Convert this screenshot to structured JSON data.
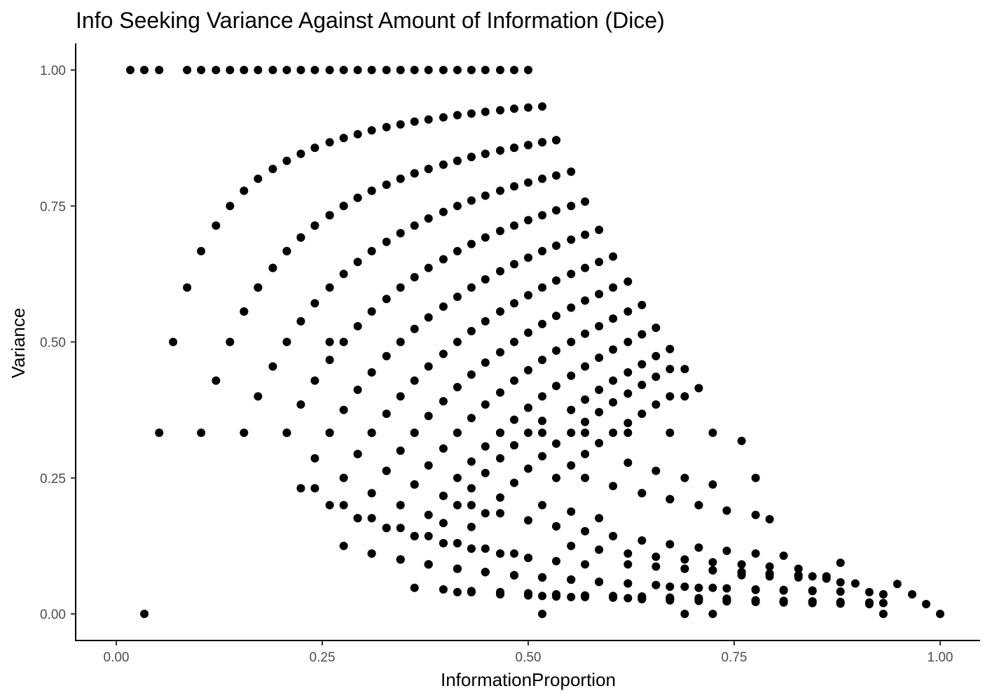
{
  "chart_data": {
    "type": "scatter",
    "title": "Info Seeking Variance Against Amount of Information (Dice)",
    "xlabel": "InformationProportion",
    "ylabel": "Variance",
    "xlim": [
      -0.04,
      1.05
    ],
    "ylim": [
      -0.05,
      1.05
    ],
    "x_ticks": [
      0,
      0.25,
      0.5,
      0.75,
      1
    ],
    "x_tick_labels": [
      "0.00",
      "0.25",
      "0.50",
      "0.75",
      "1.00"
    ],
    "y_ticks": [
      0,
      0.25,
      0.5,
      0.75,
      1
    ],
    "y_tick_labels": [
      "0.00",
      "0.25",
      "0.50",
      "0.75",
      "1.00"
    ],
    "grid": false,
    "legend": "none",
    "point_color": "#000000",
    "series": [
      {
        "x": [
          0.017,
          0.034,
          0.052,
          0.086,
          0.103,
          0.121,
          0.138,
          0.155,
          0.172,
          0.19,
          0.207,
          0.224,
          0.241,
          0.259,
          0.276,
          0.293,
          0.31,
          0.328,
          0.345,
          0.362,
          0.379,
          0.397,
          0.414,
          0.431,
          0.448,
          0.466,
          0.483,
          0.5,
          0.103,
          0.121,
          0.138,
          0.155,
          0.172,
          0.19,
          0.207,
          0.224,
          0.241,
          0.259,
          0.276,
          0.293,
          0.31,
          0.328,
          0.345,
          0.362,
          0.379,
          0.397,
          0.414,
          0.431,
          0.448,
          0.466,
          0.483,
          0.5,
          0.517,
          0.069,
          0.086,
          0.155,
          0.172,
          0.19,
          0.207,
          0.224,
          0.241,
          0.259,
          0.276,
          0.293,
          0.31,
          0.328,
          0.345,
          0.362,
          0.379,
          0.397,
          0.414,
          0.431,
          0.448,
          0.466,
          0.483,
          0.5,
          0.517,
          0.534,
          0.121,
          0.138,
          0.155,
          0.172,
          0.19,
          0.207,
          0.224,
          0.241,
          0.259,
          0.276,
          0.293,
          0.31,
          0.328,
          0.345,
          0.362,
          0.379,
          0.397,
          0.414,
          0.431,
          0.448,
          0.466,
          0.483,
          0.5,
          0.517,
          0.534,
          0.552,
          0.172,
          0.19,
          0.207,
          0.224,
          0.241,
          0.259,
          0.276,
          0.293,
          0.31,
          0.328,
          0.345,
          0.362,
          0.379,
          0.397,
          0.414,
          0.431,
          0.448,
          0.466,
          0.483,
          0.5,
          0.517,
          0.534,
          0.552,
          0.569,
          0.207,
          0.224,
          0.241,
          0.259,
          0.276,
          0.293,
          0.31,
          0.328,
          0.345,
          0.362,
          0.379,
          0.397,
          0.414,
          0.431,
          0.448,
          0.466,
          0.483,
          0.5,
          0.517,
          0.534,
          0.552,
          0.569,
          0.586,
          0.241,
          0.259,
          0.276,
          0.293,
          0.31,
          0.328,
          0.345,
          0.362,
          0.379,
          0.397,
          0.414,
          0.431,
          0.448,
          0.466,
          0.483,
          0.5,
          0.517,
          0.534,
          0.552,
          0.569,
          0.586,
          0.603,
          0.276,
          0.293,
          0.31,
          0.328,
          0.345,
          0.362,
          0.379,
          0.397,
          0.414,
          0.431,
          0.448,
          0.466,
          0.483,
          0.5,
          0.517,
          0.534,
          0.552,
          0.569,
          0.586,
          0.603,
          0.621,
          0.31,
          0.328,
          0.345,
          0.362,
          0.379,
          0.397,
          0.414,
          0.431,
          0.448,
          0.466,
          0.483,
          0.5,
          0.517,
          0.534,
          0.552,
          0.569,
          0.586,
          0.603,
          0.621,
          0.638,
          0.345,
          0.362,
          0.379,
          0.397,
          0.414,
          0.431,
          0.448,
          0.466,
          0.483,
          0.5,
          0.517,
          0.534,
          0.552,
          0.569,
          0.586,
          0.603,
          0.621,
          0.638,
          0.655,
          0.362,
          0.379,
          0.397,
          0.414,
          0.431,
          0.448,
          0.466,
          0.483,
          0.5,
          0.517,
          0.534,
          0.552,
          0.569,
          0.586,
          0.603,
          0.621,
          0.638,
          0.655,
          0.672,
          0.397,
          0.414,
          0.431,
          0.448,
          0.466,
          0.483,
          0.5,
          0.517,
          0.534,
          0.552,
          0.569,
          0.586,
          0.603,
          0.621,
          0.638,
          0.655,
          0.672,
          0.69,
          0.414,
          0.431,
          0.448,
          0.466,
          0.483,
          0.5,
          0.517,
          0.534,
          0.552,
          0.569,
          0.586,
          0.603,
          0.621,
          0.638,
          0.655,
          0.672,
          0.69,
          0.707,
          0.052,
          0.103,
          0.155,
          0.207,
          0.259,
          0.31,
          0.362,
          0.414,
          0.466,
          0.517,
          0.569,
          0.621,
          0.672,
          0.724,
          0.241,
          0.276,
          0.31,
          0.345,
          0.379,
          0.414,
          0.448,
          0.483,
          0.517,
          0.552,
          0.586,
          0.621,
          0.655,
          0.69,
          0.724,
          0.759,
          0.224,
          0.259,
          0.293,
          0.328,
          0.362,
          0.397,
          0.431,
          0.466,
          0.5,
          0.534,
          0.569,
          0.603,
          0.638,
          0.672,
          0.707,
          0.741,
          0.776,
          0.259,
          0.293,
          0.328,
          0.362,
          0.397,
          0.431,
          0.466,
          0.5,
          0.534,
          0.569,
          0.603,
          0.638,
          0.672,
          0.707,
          0.741,
          0.776,
          0.793,
          0.293,
          0.328,
          0.362,
          0.397,
          0.431,
          0.466,
          0.5,
          0.534,
          0.569,
          0.603,
          0.638,
          0.672,
          0.707,
          0.741,
          0.776,
          0.81,
          0.276,
          0.31,
          0.345,
          0.379,
          0.414,
          0.448,
          0.483,
          0.517,
          0.552,
          0.586,
          0.621,
          0.655,
          0.69,
          0.724,
          0.759,
          0.793,
          0.828,
          0.31,
          0.345,
          0.379,
          0.414,
          0.448,
          0.483,
          0.517,
          0.552,
          0.586,
          0.621,
          0.655,
          0.69,
          0.724,
          0.759,
          0.793,
          0.828,
          0.845,
          0.345,
          0.379,
          0.414,
          0.448,
          0.483,
          0.517,
          0.552,
          0.586,
          0.621,
          0.655,
          0.69,
          0.724,
          0.759,
          0.793,
          0.828,
          0.862,
          0.379,
          0.414,
          0.448,
          0.483,
          0.517,
          0.552,
          0.586,
          0.621,
          0.655,
          0.69,
          0.724,
          0.759,
          0.793,
          0.828,
          0.862,
          0.879,
          0.397,
          0.431,
          0.466,
          0.5,
          0.534,
          0.569,
          0.603,
          0.638,
          0.672,
          0.707,
          0.741,
          0.776,
          0.81,
          0.845,
          0.879,
          0.897,
          0.431,
          0.466,
          0.5,
          0.534,
          0.569,
          0.603,
          0.638,
          0.672,
          0.707,
          0.741,
          0.776,
          0.81,
          0.845,
          0.879,
          0.914,
          0.362,
          0.414,
          0.466,
          0.517,
          0.569,
          0.621,
          0.672,
          0.707,
          0.741,
          0.776,
          0.81,
          0.845,
          0.879,
          0.914,
          0.931,
          0.431,
          0.466,
          0.5,
          0.534,
          0.552,
          0.603,
          0.638,
          0.672,
          0.707,
          0.741,
          0.776,
          0.81,
          0.845,
          0.879,
          0.914,
          0.948,
          0.638,
          0.672,
          0.707,
          0.741,
          0.776,
          0.81,
          0.845,
          0.879,
          0.914,
          0.931,
          0.966,
          0.983,
          0.034,
          0.517,
          0.69,
          0.724,
          0.931,
          1.0
        ],
        "y": [
          1,
          1,
          1,
          1,
          1,
          1,
          1,
          1,
          1,
          1,
          1,
          1,
          1,
          1,
          1,
          1,
          1,
          1,
          1,
          1,
          1,
          1,
          1,
          1,
          1,
          1,
          1,
          1,
          0.667,
          0.714,
          0.75,
          0.778,
          0.8,
          0.818,
          0.833,
          0.846,
          0.857,
          0.867,
          0.875,
          0.882,
          0.889,
          0.895,
          0.9,
          0.905,
          0.909,
          0.913,
          0.917,
          0.92,
          0.923,
          0.926,
          0.929,
          0.931,
          0.933,
          0.5,
          0.6,
          0.556,
          0.6,
          0.636,
          0.667,
          0.692,
          0.714,
          0.733,
          0.75,
          0.765,
          0.778,
          0.789,
          0.8,
          0.81,
          0.818,
          0.826,
          0.833,
          0.84,
          0.846,
          0.852,
          0.857,
          0.862,
          0.867,
          0.871,
          0.429,
          0.5,
          0.556,
          0.6,
          0.636,
          0.667,
          0.692,
          0.714,
          0.733,
          0.75,
          0.765,
          0.778,
          0.789,
          0.8,
          0.81,
          0.818,
          0.826,
          0.833,
          0.84,
          0.846,
          0.852,
          0.857,
          0.862,
          0.867,
          0.871,
          0.813,
          0.4,
          0.455,
          0.5,
          0.538,
          0.571,
          0.6,
          0.625,
          0.647,
          0.667,
          0.684,
          0.7,
          0.714,
          0.727,
          0.739,
          0.75,
          0.76,
          0.769,
          0.778,
          0.786,
          0.793,
          0.8,
          0.806,
          0.75,
          0.758,
          0.333,
          0.385,
          0.429,
          0.467,
          0.5,
          0.529,
          0.556,
          0.579,
          0.6,
          0.619,
          0.636,
          0.652,
          0.667,
          0.68,
          0.692,
          0.704,
          0.714,
          0.724,
          0.733,
          0.742,
          0.688,
          0.697,
          0.706,
          0.286,
          0.333,
          0.375,
          0.412,
          0.444,
          0.474,
          0.5,
          0.524,
          0.545,
          0.565,
          0.583,
          0.6,
          0.615,
          0.63,
          0.643,
          0.655,
          0.667,
          0.677,
          0.625,
          0.636,
          0.647,
          0.657,
          0.25,
          0.294,
          0.333,
          0.368,
          0.4,
          0.429,
          0.455,
          0.478,
          0.5,
          0.52,
          0.538,
          0.556,
          0.571,
          0.586,
          0.6,
          0.613,
          0.563,
          0.576,
          0.588,
          0.6,
          0.611,
          0.222,
          0.263,
          0.3,
          0.333,
          0.364,
          0.391,
          0.417,
          0.44,
          0.462,
          0.481,
          0.5,
          0.517,
          0.533,
          0.548,
          0.5,
          0.515,
          0.529,
          0.543,
          0.556,
          0.568,
          0.2,
          0.238,
          0.273,
          0.304,
          0.333,
          0.36,
          0.385,
          0.407,
          0.429,
          0.448,
          0.467,
          0.484,
          0.438,
          0.455,
          0.471,
          0.486,
          0.5,
          0.514,
          0.526,
          0.143,
          0.182,
          0.217,
          0.25,
          0.28,
          0.308,
          0.333,
          0.357,
          0.379,
          0.4,
          0.419,
          0.375,
          0.394,
          0.412,
          0.429,
          0.444,
          0.459,
          0.474,
          0.487,
          0.167,
          0.2,
          0.231,
          0.259,
          0.286,
          0.31,
          0.333,
          0.355,
          0.313,
          0.333,
          0.353,
          0.371,
          0.389,
          0.405,
          0.421,
          0.436,
          0.45,
          0.45,
          0.13,
          0.16,
          0.185,
          0.214,
          0.241,
          0.267,
          0.29,
          0.25,
          0.273,
          0.294,
          0.314,
          0.333,
          0.351,
          0.368,
          0.385,
          0.4,
          0.4,
          0.415,
          0.333,
          0.333,
          0.333,
          0.333,
          0.333,
          0.333,
          0.333,
          0.333,
          0.333,
          0.333,
          0.333,
          0.333,
          0.333,
          0.333,
          0.231,
          0.2,
          0.176,
          0.158,
          0.143,
          0.13,
          0.12,
          0.111,
          0.2,
          0.188,
          0.176,
          0.278,
          0.263,
          0.25,
          0.238,
          0.318,
          0.231,
          0.2,
          0.176,
          0.158,
          0.143,
          0.13,
          0.12,
          0.111,
          0.103,
          0.161,
          0.152,
          0.143,
          0.222,
          0.211,
          0.2,
          0.19,
          0.25,
          0.5,
          0.294,
          0.263,
          0.238,
          0.217,
          0.2,
          0.185,
          0.172,
          0.161,
          0.25,
          0.235,
          0.222,
          0.211,
          0.2,
          0.19,
          0.182,
          0.174,
          0.176,
          0.158,
          0.143,
          0.13,
          0.12,
          0.111,
          0.103,
          0.097,
          0.091,
          0.143,
          0.135,
          0.128,
          0.122,
          0.116,
          0.111,
          0.107,
          0.125,
          0.111,
          0.1,
          0.091,
          0.083,
          0.077,
          0.071,
          0.067,
          0.125,
          0.118,
          0.111,
          0.105,
          0.1,
          0.095,
          0.091,
          0.087,
          0.083,
          0.111,
          0.1,
          0.091,
          0.083,
          0.077,
          0.071,
          0.067,
          0.063,
          0.059,
          0.091,
          0.087,
          0.083,
          0.08,
          0.077,
          0.074,
          0.071,
          0.069,
          0.1,
          0.091,
          0.083,
          0.077,
          0.071,
          0.067,
          0.063,
          0.059,
          0.056,
          0.053,
          0.083,
          0.08,
          0.077,
          0.074,
          0.071,
          0.069,
          0.091,
          0.083,
          0.077,
          0.071,
          0.067,
          0.063,
          0.059,
          0.056,
          0.053,
          0.05,
          0.048,
          0.071,
          0.069,
          0.067,
          0.065,
          0.094,
          0.045,
          0.042,
          0.04,
          0.038,
          0.036,
          0.034,
          0.033,
          0.032,
          0.05,
          0.048,
          0.047,
          0.045,
          0.044,
          0.043,
          0.058,
          0.056,
          0.04,
          0.038,
          0.036,
          0.034,
          0.033,
          0.032,
          0.031,
          0.03,
          0.029,
          0.028,
          0.044,
          0.043,
          0.042,
          0.041,
          0.04,
          0.048,
          0.04,
          0.036,
          0.033,
          0.031,
          0.029,
          0.027,
          0.026,
          0.025,
          0.024,
          0.023,
          0.022,
          0.021,
          0.02,
          0.02,
          0.04,
          0.037,
          0.034,
          0.032,
          0.031,
          0.03,
          0.029,
          0.028,
          0.027,
          0.026,
          0.025,
          0.024,
          0.023,
          0.022,
          0.021,
          0.055,
          0.027,
          0.025,
          0.024,
          0.023,
          0.022,
          0.021,
          0.02,
          0.019,
          0.018,
          0.036,
          0.036,
          0.018,
          0,
          0,
          0,
          0,
          0,
          0
        ]
      }
    ]
  }
}
